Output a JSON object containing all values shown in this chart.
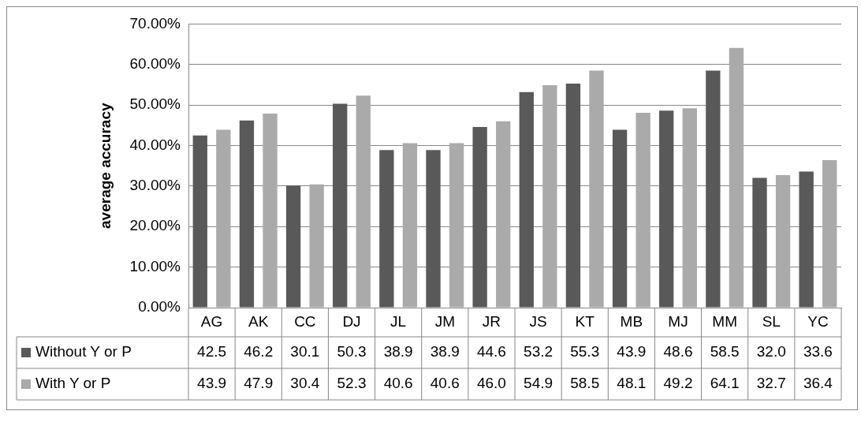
{
  "chart_data": {
    "type": "bar",
    "ylabel": "average accuracy",
    "categories": [
      "AG",
      "AK",
      "CC",
      "DJ",
      "JL",
      "JM",
      "JR",
      "JS",
      "KT",
      "MB",
      "MJ",
      "MM",
      "SL",
      "YC"
    ],
    "series": [
      {
        "name": "Without Y or P",
        "color": "#595959",
        "values": [
          42.5,
          46.2,
          30.1,
          50.3,
          38.9,
          38.9,
          44.6,
          53.2,
          55.3,
          43.9,
          48.6,
          58.5,
          32.0,
          33.6
        ],
        "value_labels": [
          "42.5",
          "46.2",
          "30.1",
          "50.3",
          "38.9",
          "38.9",
          "44.6",
          "53.2",
          "55.3",
          "43.9",
          "48.6",
          "58.5",
          "32.0",
          "33.6"
        ]
      },
      {
        "name": "With Y or P",
        "color": "#aaaaaa",
        "values": [
          43.9,
          47.9,
          30.4,
          52.3,
          40.6,
          40.6,
          46.0,
          54.9,
          58.5,
          48.1,
          49.2,
          64.1,
          32.7,
          36.4
        ],
        "value_labels": [
          "43.9",
          "47.9",
          "30.4",
          "52.3",
          "40.6",
          "40.6",
          "46.0",
          "54.9",
          "58.5",
          "48.1",
          "49.2",
          "64.1",
          "32.7",
          "36.4"
        ]
      }
    ],
    "ylim": [
      0,
      70
    ],
    "yticks": [
      {
        "value": 0,
        "label": "0.00%"
      },
      {
        "value": 10,
        "label": "10.00%"
      },
      {
        "value": 20,
        "label": "20.00%"
      },
      {
        "value": 30,
        "label": "30.00%"
      },
      {
        "value": 40,
        "label": "40.00%"
      },
      {
        "value": 50,
        "label": "50.00%"
      },
      {
        "value": 60,
        "label": "60.00%"
      },
      {
        "value": 70,
        "label": "70.00%"
      }
    ],
    "grid": "y",
    "legend": "bottom"
  }
}
